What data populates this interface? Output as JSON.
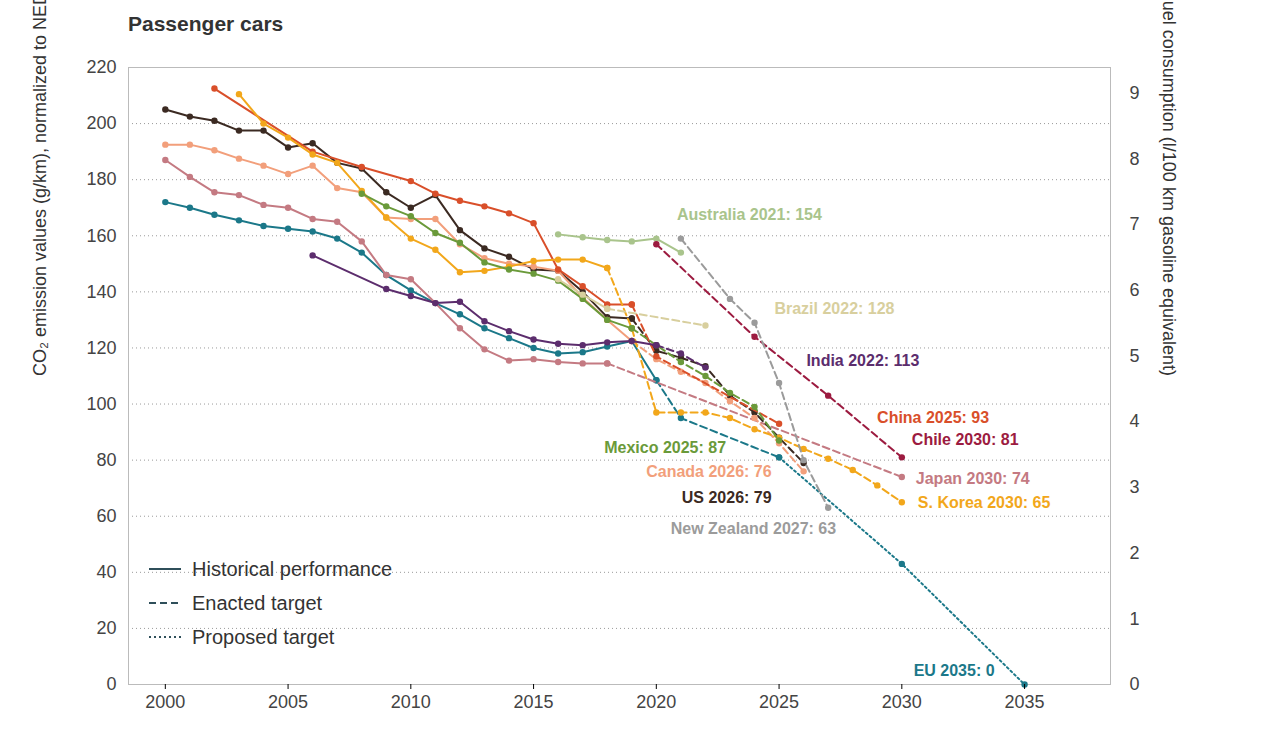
{
  "chart_data": {
    "type": "line",
    "title": "Passenger cars",
    "ylabel": "CO₂ emission values (g/km), normalized to NEDC",
    "y2label": "Fuel consumption (l/100 km gasoline equivalent)",
    "xlim": [
      1998.5,
      2038.5
    ],
    "xticks": [
      2000,
      2005,
      2010,
      2015,
      2020,
      2025,
      2030,
      2035
    ],
    "ylim": [
      0,
      220
    ],
    "yticks": [
      0,
      20,
      40,
      60,
      80,
      100,
      120,
      140,
      160,
      180,
      200,
      220
    ],
    "y2lim": [
      0,
      9.39
    ],
    "y2ticks": [
      0,
      1,
      2,
      3,
      4,
      5,
      6,
      7,
      8,
      9
    ],
    "grid": true,
    "marker": "circle",
    "legend": "bottom-left",
    "legend_entries": [
      {
        "label": "Historical performance",
        "line_style": "solid"
      },
      {
        "label": "Enacted target",
        "line_style": "dashed"
      },
      {
        "label": "Proposed target",
        "line_style": "dotted"
      }
    ],
    "series": [
      {
        "label": "EU 2035: 0",
        "color": "#1b7889",
        "segments": [
          {
            "line_style": "solid",
            "x": [
              2000,
              2001,
              2002,
              2003,
              2004,
              2005,
              2006,
              2007,
              2008,
              2009,
              2010,
              2011,
              2012,
              2013,
              2014,
              2015,
              2016,
              2017,
              2018,
              2019,
              2020
            ],
            "values": [
              172,
              170,
              167.5,
              165.5,
              163.5,
              162.5,
              161.5,
              159,
              154,
              146,
              140.5,
              136,
              132,
              127,
              123.5,
              120,
              118,
              118.5,
              120.5,
              122.5,
              108.5
            ]
          },
          {
            "line_style": "dashed",
            "x": [
              2020,
              2021,
              2025
            ],
            "values": [
              108.5,
              95,
              81
            ]
          },
          {
            "line_style": "dotted",
            "x": [
              2025,
              2030,
              2035
            ],
            "values": [
              81,
              43,
              0
            ]
          }
        ]
      },
      {
        "label": "Japan 2030: 74",
        "color": "#c47a82",
        "segments": [
          {
            "line_style": "solid",
            "x": [
              2000,
              2001,
              2002,
              2003,
              2004,
              2005,
              2006,
              2007,
              2008,
              2009,
              2010,
              2011,
              2012,
              2013,
              2014,
              2015,
              2016,
              2017,
              2018
            ],
            "values": [
              187,
              181,
              175.5,
              174.5,
              171,
              170,
              166,
              165,
              158,
              146,
              144.5,
              136,
              127,
              119.5,
              115.5,
              116,
              115,
              114.5,
              114.5
            ]
          },
          {
            "line_style": "dashed",
            "x": [
              2018,
              2030
            ],
            "values": [
              114.5,
              74
            ]
          }
        ]
      },
      {
        "label": "US 2026: 79",
        "color": "#3b2a22",
        "segments": [
          {
            "line_style": "solid",
            "x": [
              2000,
              2001,
              2002,
              2003,
              2004,
              2005,
              2006,
              2007,
              2008,
              2009,
              2010,
              2011,
              2012,
              2013,
              2014,
              2015,
              2016,
              2017,
              2018,
              2019
            ],
            "values": [
              205,
              202.5,
              201,
              197.5,
              197.5,
              191.5,
              193,
              186,
              184,
              175.5,
              170,
              174.5,
              162,
              155.5,
              152.5,
              148,
              147.5,
              140,
              131,
              130.5
            ]
          },
          {
            "line_style": "dashed",
            "x": [
              2019,
              2020,
              2021,
              2022,
              2023,
              2024,
              2025,
              2026
            ],
            "values": [
              130.5,
              119,
              116.5,
              113.5,
              103,
              97,
              88,
              79
            ]
          }
        ]
      },
      {
        "label": "Canada 2026: 76",
        "color": "#f29f7b",
        "segments": [
          {
            "line_style": "solid",
            "x": [
              2000,
              2001,
              2002,
              2003,
              2004,
              2005,
              2006,
              2007,
              2008,
              2009,
              2010,
              2011,
              2012,
              2013,
              2014,
              2015,
              2016,
              2017,
              2018,
              2019
            ],
            "values": [
              192.5,
              192.5,
              190.5,
              187.5,
              185,
              182,
              185,
              177,
              175.5,
              166.5,
              166,
              166,
              157,
              152,
              150,
              149,
              147.5,
              138,
              130,
              122.5
            ]
          },
          {
            "line_style": "dashed",
            "x": [
              2019,
              2020,
              2021,
              2022,
              2023,
              2024,
              2025,
              2026
            ],
            "values": [
              122.5,
              116,
              111.5,
              107.5,
              101,
              95,
              86,
              76
            ]
          }
        ]
      },
      {
        "label": "China 2025: 93",
        "color": "#d94f2a",
        "segments": [
          {
            "line_style": "solid",
            "x": [
              2002,
              2006,
              2008,
              2010,
              2011,
              2012,
              2013,
              2014,
              2015,
              2016,
              2017,
              2018,
              2019
            ],
            "values": [
              212.5,
              190,
              184.5,
              179.5,
              175,
              172.5,
              170.5,
              168,
              164.5,
              148,
              142,
              135.5,
              135.5
            ]
          },
          {
            "line_style": "dashed",
            "x": [
              2019,
              2020,
              2025
            ],
            "values": [
              135.5,
              117,
              93
            ]
          }
        ]
      },
      {
        "label": "S. Korea 2030: 65",
        "color": "#f2a71b",
        "segments": [
          {
            "line_style": "solid",
            "x": [
              2003,
              2004,
              2005,
              2006,
              2007,
              2008,
              2009,
              2010,
              2011,
              2012,
              2013,
              2014,
              2015,
              2016,
              2017,
              2018
            ],
            "values": [
              210.5,
              200,
              195,
              189,
              186,
              176,
              166.5,
              159,
              155,
              147,
              147.5,
              149,
              151,
              151.5,
              151.5,
              148.5
            ]
          },
          {
            "line_style": "dashed",
            "x": [
              2018,
              2019,
              2020,
              2021,
              2022,
              2023,
              2024,
              2025,
              2026,
              2027,
              2028,
              2029,
              2030
            ],
            "values": [
              148.5,
              127,
              97,
              97,
              97,
              95,
              91,
              88,
              84,
              80.5,
              76.5,
              71,
              65
            ]
          }
        ]
      },
      {
        "label": "Mexico 2025: 87",
        "color": "#6a9a3a",
        "segments": [
          {
            "line_style": "solid",
            "x": [
              2008,
              2009,
              2010,
              2011,
              2012,
              2013,
              2014,
              2015,
              2016,
              2017,
              2018,
              2019
            ],
            "values": [
              175,
              170.5,
              167,
              161,
              157.5,
              150.5,
              148,
              146.5,
              144,
              137.5,
              130,
              127
            ]
          },
          {
            "line_style": "dashed",
            "x": [
              2019,
              2020,
              2021,
              2022,
              2023,
              2024,
              2025
            ],
            "values": [
              127,
              121,
              115,
              110,
              104,
              99,
              87
            ]
          }
        ]
      },
      {
        "label": "Brazil 2022: 128",
        "color": "#d8cf9e",
        "segments": [
          {
            "line_style": "solid",
            "x": [
              2016,
              2017,
              2018
            ],
            "values": [
              144.5,
              139,
              134
            ]
          },
          {
            "line_style": "dashed",
            "x": [
              2018,
              2022
            ],
            "values": [
              134,
              128
            ]
          }
        ]
      },
      {
        "label": "Australia 2021: 154",
        "color": "#a9c48c",
        "segments": [
          {
            "line_style": "solid",
            "x": [
              2016,
              2017,
              2018,
              2019,
              2020,
              2021
            ],
            "values": [
              160.5,
              159.5,
              158.5,
              158,
              159,
              154
            ]
          }
        ]
      },
      {
        "label": "India 2022: 113",
        "color": "#5c2d6d",
        "segments": [
          {
            "line_style": "solid",
            "x": [
              2006,
              2009,
              2010,
              2011,
              2012,
              2013,
              2014,
              2015,
              2016,
              2017,
              2018,
              2019,
              2020
            ],
            "values": [
              153,
              141,
              138.5,
              136,
              136.5,
              129.5,
              126,
              123,
              121.5,
              121,
              122,
              122.5,
              121
            ]
          },
          {
            "line_style": "dashed",
            "x": [
              2020,
              2021,
              2022
            ],
            "values": [
              121,
              118,
              113
            ]
          }
        ]
      },
      {
        "label": "Chile 2030: 81",
        "color": "#9c1b40",
        "segments": [
          {
            "line_style": "dashed",
            "x": [
              2020,
              2024,
              2027,
              2030
            ],
            "values": [
              157,
              124,
              103,
              81
            ]
          }
        ]
      },
      {
        "label": "New Zealand 2027: 63",
        "color": "#9b9b9b",
        "segments": [
          {
            "line_style": "dashed",
            "x": [
              2021,
              2023,
              2024,
              2025,
              2026,
              2027
            ],
            "values": [
              159,
              137.5,
              129,
              107.5,
              80,
              63
            ]
          }
        ]
      }
    ]
  }
}
